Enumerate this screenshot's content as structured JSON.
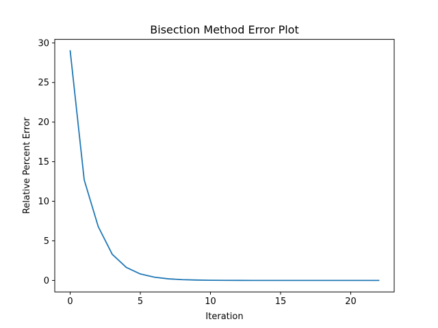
{
  "chart_data": {
    "type": "line",
    "title": "Bisection Method Error Plot",
    "xlabel": "Iteration",
    "ylabel": "Relative Percent Error",
    "xlim": [
      -1.1,
      23.1
    ],
    "ylim": [
      -1.45,
      30.45
    ],
    "xticks": [
      0,
      5,
      10,
      15,
      20
    ],
    "yticks": [
      0,
      5,
      10,
      15,
      20,
      25,
      30
    ],
    "grid": false,
    "series": [
      {
        "color": "#1f77b4",
        "x": [
          0,
          1,
          2,
          3,
          4,
          5,
          6,
          7,
          8,
          9,
          10,
          11,
          12,
          13,
          14,
          15,
          16,
          17,
          18,
          19,
          20,
          21,
          22
        ],
        "y": [
          29.0,
          12.7,
          6.8,
          3.3,
          1.65,
          0.82,
          0.41,
          0.2,
          0.1,
          0.05,
          0.026,
          0.013,
          0.0064,
          0.0032,
          0.0016,
          0.0008,
          0.0004,
          0.0002,
          0.0001,
          5e-05,
          2.5e-05,
          1.25e-05,
          6e-06
        ]
      }
    ]
  }
}
